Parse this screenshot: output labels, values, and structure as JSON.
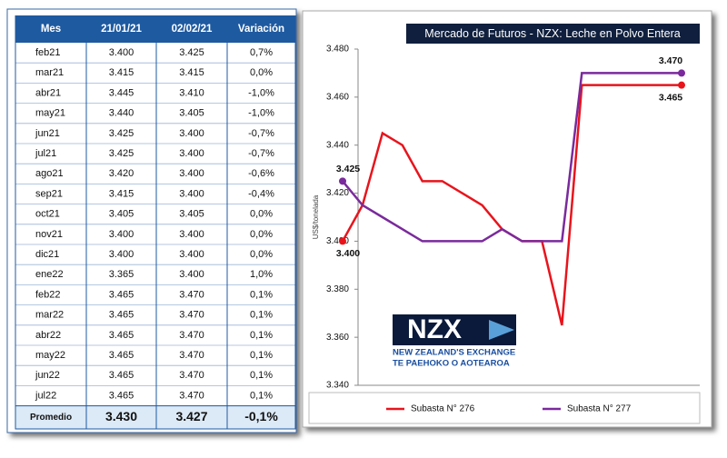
{
  "table": {
    "header": [
      "Mes",
      "21/01/21",
      "02/02/21",
      "Variación"
    ],
    "rows": [
      [
        "feb21",
        "3.400",
        "3.425",
        "0,7%"
      ],
      [
        "mar21",
        "3.415",
        "3.415",
        "0,0%"
      ],
      [
        "abr21",
        "3.445",
        "3.410",
        "-1,0%"
      ],
      [
        "may21",
        "3.440",
        "3.405",
        "-1,0%"
      ],
      [
        "jun21",
        "3.425",
        "3.400",
        "-0,7%"
      ],
      [
        "jul21",
        "3.425",
        "3.400",
        "-0,7%"
      ],
      [
        "ago21",
        "3.420",
        "3.400",
        "-0,6%"
      ],
      [
        "sep21",
        "3.415",
        "3.400",
        "-0,4%"
      ],
      [
        "oct21",
        "3.405",
        "3.405",
        "0,0%"
      ],
      [
        "nov21",
        "3.400",
        "3.400",
        "0,0%"
      ],
      [
        "dic21",
        "3.400",
        "3.400",
        "0,0%"
      ],
      [
        "ene22",
        "3.365",
        "3.400",
        "1,0%"
      ],
      [
        "feb22",
        "3.465",
        "3.470",
        "0,1%"
      ],
      [
        "mar22",
        "3.465",
        "3.470",
        "0,1%"
      ],
      [
        "abr22",
        "3.465",
        "3.470",
        "0,1%"
      ],
      [
        "may22",
        "3.465",
        "3.470",
        "0,1%"
      ],
      [
        "jun22",
        "3.465",
        "3.470",
        "0,1%"
      ],
      [
        "jul22",
        "3.465",
        "3.470",
        "0,1%"
      ]
    ],
    "footer": [
      "Promedio",
      "3.430",
      "3.427",
      "-0,1%"
    ]
  },
  "logo": {
    "mark": "NZX",
    "line1": "NEW ZEALAND'S EXCHANGE",
    "line2": "TE PAEHOKO O AOTEAROA"
  },
  "chart_data": {
    "type": "line",
    "title": "Mercado de Futuros - NZX: Leche en Polvo Entera",
    "ylabel": "US$/tonelada",
    "ylim": [
      3.34,
      3.48
    ],
    "yticks": [
      {
        "value": 3.34,
        "label": "3.340"
      },
      {
        "value": 3.36,
        "label": "3.360"
      },
      {
        "value": 3.38,
        "label": "3.380"
      },
      {
        "value": 3.4,
        "label": "3.400"
      },
      {
        "value": 3.42,
        "label": "3.420"
      },
      {
        "value": 3.44,
        "label": "3.440"
      },
      {
        "value": 3.46,
        "label": "3.460"
      },
      {
        "value": 3.48,
        "label": "3.480"
      }
    ],
    "legend": "bottom",
    "series": [
      {
        "name": "Subasta N° 276",
        "color": "#e8141c",
        "values": [
          3.4,
          3.415,
          3.445,
          3.44,
          3.425,
          3.425,
          3.42,
          3.415,
          3.405,
          3.4,
          3.4,
          3.365,
          3.465,
          3.465,
          3.465,
          3.465,
          3.465,
          3.465
        ],
        "value_labels": [
          "3.400",
          null,
          null,
          null,
          null,
          null,
          null,
          null,
          null,
          null,
          null,
          null,
          null,
          null,
          null,
          null,
          null,
          "3.465"
        ]
      },
      {
        "name": "Subasta N° 277",
        "color": "#7a2a9c",
        "values": [
          3.425,
          3.415,
          3.41,
          3.405,
          3.4,
          3.4,
          3.4,
          3.4,
          3.405,
          3.4,
          3.4,
          3.4,
          3.47,
          3.47,
          3.47,
          3.47,
          3.47,
          3.47
        ],
        "value_labels": [
          "3.425",
          null,
          null,
          null,
          null,
          null,
          null,
          null,
          null,
          null,
          null,
          null,
          null,
          null,
          null,
          null,
          null,
          "3.470"
        ]
      }
    ]
  }
}
